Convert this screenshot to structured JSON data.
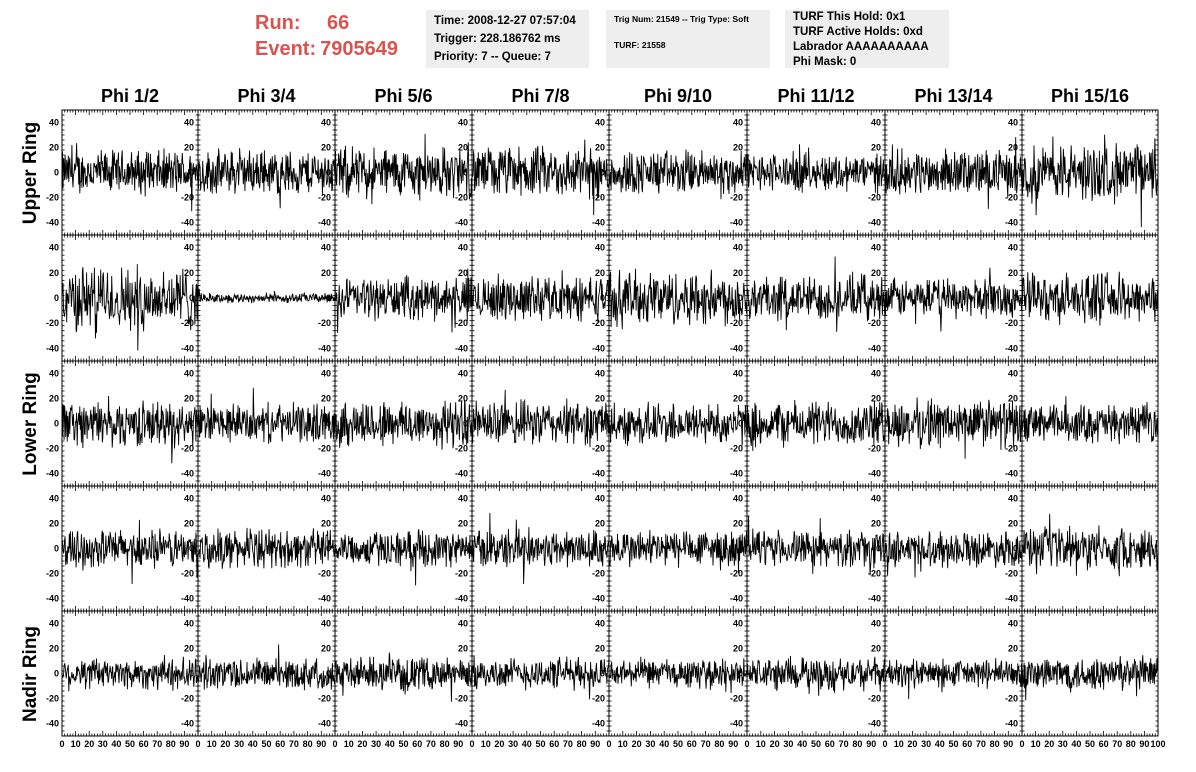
{
  "header": {
    "run_label": "Run:",
    "run_value": "66",
    "event_label": "Event:",
    "event_value": "7905649",
    "time_line": "Time: 2008-12-27 07:57:04",
    "trigger_line": "Trigger: 228.186762 ms",
    "priority_line": "Priority: 7 -- Queue: 7",
    "trig_line": "Trig Num: 21549 -- Trig Type: Soft",
    "turf_line": "TURF: 21558",
    "turf_hold_line": "TURF This Hold: 0x1",
    "turf_active_line": "TURF Active Holds: 0xd",
    "labrador_line": "Labrador AAAAAAAAAA",
    "phimask_line": "Phi Mask: 0"
  },
  "columns": [
    "Phi 1/2",
    "Phi 3/4",
    "Phi 5/6",
    "Phi 7/8",
    "Phi 9/10",
    "Phi 11/12",
    "Phi 13/14",
    "Phi 15/16"
  ],
  "rows": [
    "Upper Ring",
    "",
    "Lower Ring",
    "",
    "Nadir Ring"
  ],
  "chart_data": {
    "type": "line",
    "description_grid": "5 rows x 8 columns of waveform panels",
    "xlim": [
      0,
      100
    ],
    "ylim": [
      -50,
      50
    ],
    "xticks": [
      0,
      10,
      20,
      30,
      40,
      50,
      60,
      70,
      80,
      90,
      100
    ],
    "xtick_labels": [
      "0",
      "10",
      "20",
      "30",
      "40",
      "50",
      "60",
      "70",
      "80",
      "90",
      "100"
    ],
    "yticks": [
      -40,
      -20,
      0,
      20,
      40
    ],
    "ytick_labels": [
      "-40",
      "-20",
      "0",
      "20",
      "40"
    ],
    "amplitudes": [
      [
        14,
        14,
        16,
        16,
        14,
        12,
        14,
        18
      ],
      [
        20,
        3,
        13,
        14,
        17,
        14,
        12,
        15
      ],
      [
        14,
        12,
        15,
        14,
        13,
        14,
        15,
        12
      ],
      [
        12,
        12,
        11,
        12,
        12,
        11,
        11,
        13
      ],
      [
        10,
        10,
        10,
        10,
        9,
        10,
        9,
        11
      ]
    ],
    "colors": {
      "trace": "#000000",
      "frame": "#000000",
      "background": "#ffffff"
    }
  }
}
